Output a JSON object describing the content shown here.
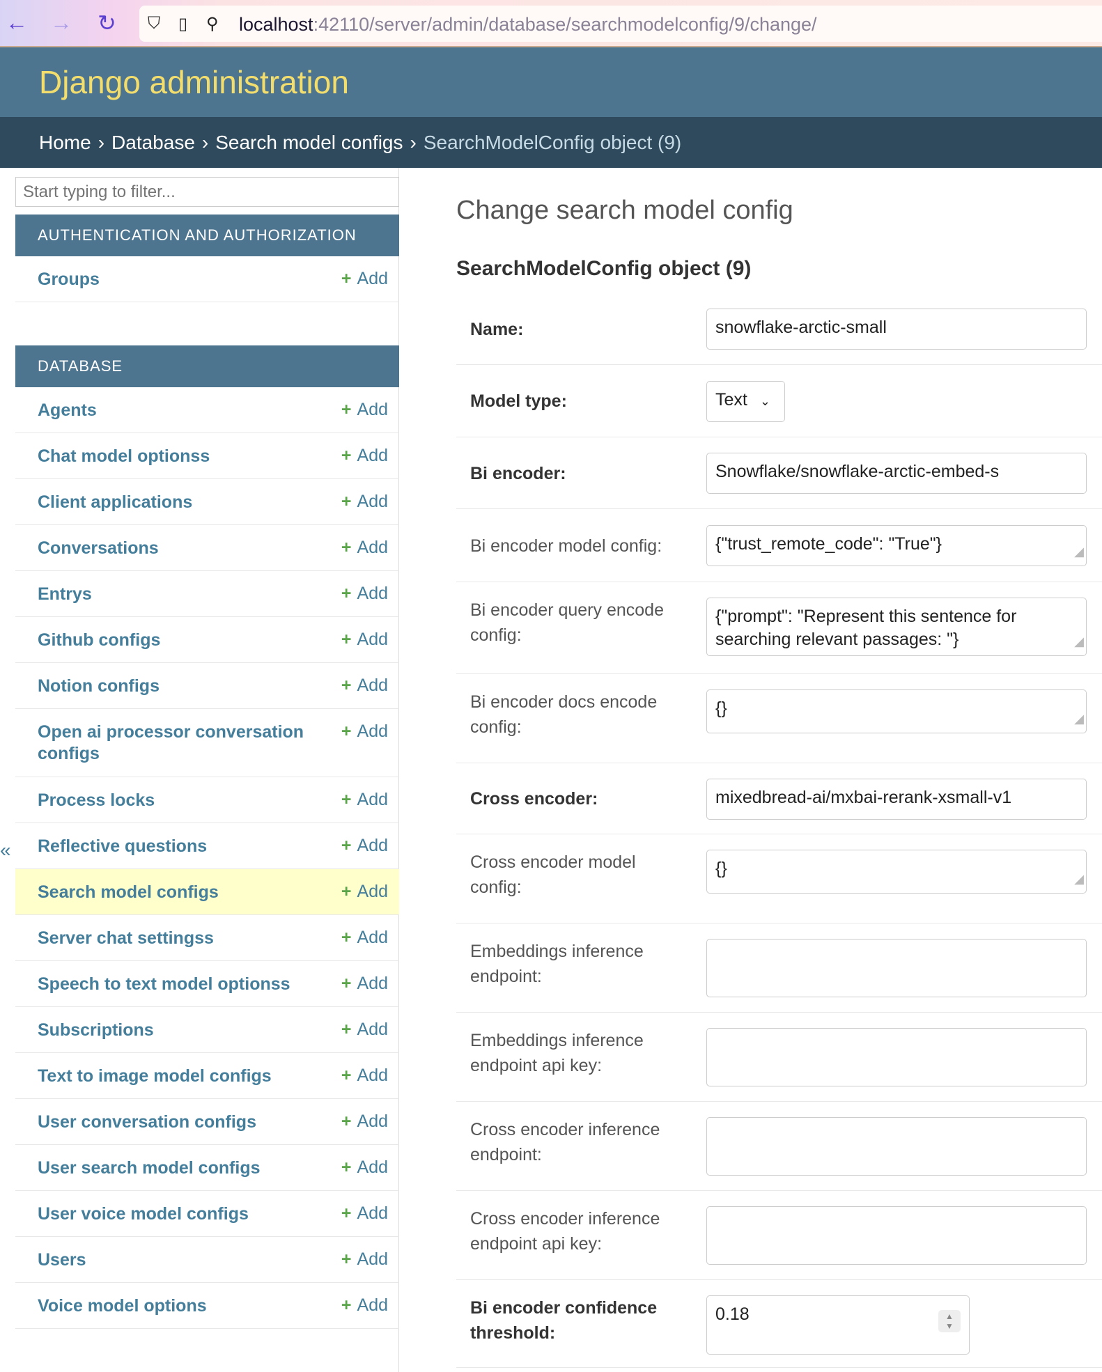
{
  "browser": {
    "url_host": "localhost",
    "url_rest": ":42110/server/admin/database/searchmodelconfig/9/change/"
  },
  "header": {
    "site_title": "Django administration"
  },
  "breadcrumbs": [
    "Home",
    "Database",
    "Search model configs",
    "SearchModelConfig object (9)"
  ],
  "breadcrumb_sep": "›",
  "sidebar": {
    "filter_placeholder": "Start typing to filter...",
    "add_label": "Add",
    "toggle": "«",
    "modules": [
      {
        "title": "AUTHENTICATION AND AUTHORIZATION",
        "items": [
          "Groups"
        ]
      },
      {
        "title": "DATABASE",
        "items": [
          "Agents",
          "Chat model optionss",
          "Client applications",
          "Conversations",
          "Entrys",
          "Github configs",
          "Notion configs",
          "Open ai processor conversation configs",
          "Process locks",
          "Reflective questions",
          "Search model configs",
          "Server chat settingss",
          "Speech to text model optionss",
          "Subscriptions",
          "Text to image model configs",
          "User conversation configs",
          "User search model configs",
          "User voice model configs",
          "Users",
          "Voice model options"
        ]
      }
    ],
    "selected": "Search model configs"
  },
  "main": {
    "title": "Change search model config",
    "object_title": "SearchModelConfig object (9)",
    "fields": [
      {
        "label": "Name:",
        "value": "snowflake-arctic-small",
        "type": "text",
        "required": true
      },
      {
        "label": "Model type:",
        "value": "Text",
        "type": "select",
        "required": true
      },
      {
        "label": "Bi encoder:",
        "value": "Snowflake/snowflake-arctic-embed-s",
        "type": "text",
        "required": true
      },
      {
        "label": "Bi encoder model config:",
        "value": "{\"trust_remote_code\": \"True\"}",
        "type": "textarea",
        "required": false
      },
      {
        "label": "Bi encoder query encode config:",
        "value": "{\"prompt\": \"Represent this sentence for searching relevant passages: \"}",
        "type": "textarea",
        "required": false
      },
      {
        "label": "Bi encoder docs encode config:",
        "value": "{}",
        "type": "textarea",
        "required": false
      },
      {
        "label": "Cross encoder:",
        "value": "mixedbread-ai/mxbai-rerank-xsmall-v1",
        "type": "text",
        "required": true
      },
      {
        "label": "Cross encoder model config:",
        "value": "{}",
        "type": "textarea",
        "required": false
      },
      {
        "label": "Embeddings inference endpoint:",
        "value": "",
        "type": "text",
        "required": false
      },
      {
        "label": "Embeddings inference endpoint api key:",
        "value": "",
        "type": "text",
        "required": false
      },
      {
        "label": "Cross encoder inference endpoint:",
        "value": "",
        "type": "text",
        "required": false
      },
      {
        "label": "Cross encoder inference endpoint api key:",
        "value": "",
        "type": "text",
        "required": false
      },
      {
        "label": "Bi encoder confidence threshold:",
        "value": "0.18",
        "type": "number",
        "required": true
      }
    ]
  },
  "colors": {
    "header": "#4e7590",
    "breadcrumbs": "#2f4a5c",
    "title": "#f3de6d",
    "link": "#447e9b",
    "add": "#5aa54a",
    "selected_row": "#ffffcc"
  }
}
